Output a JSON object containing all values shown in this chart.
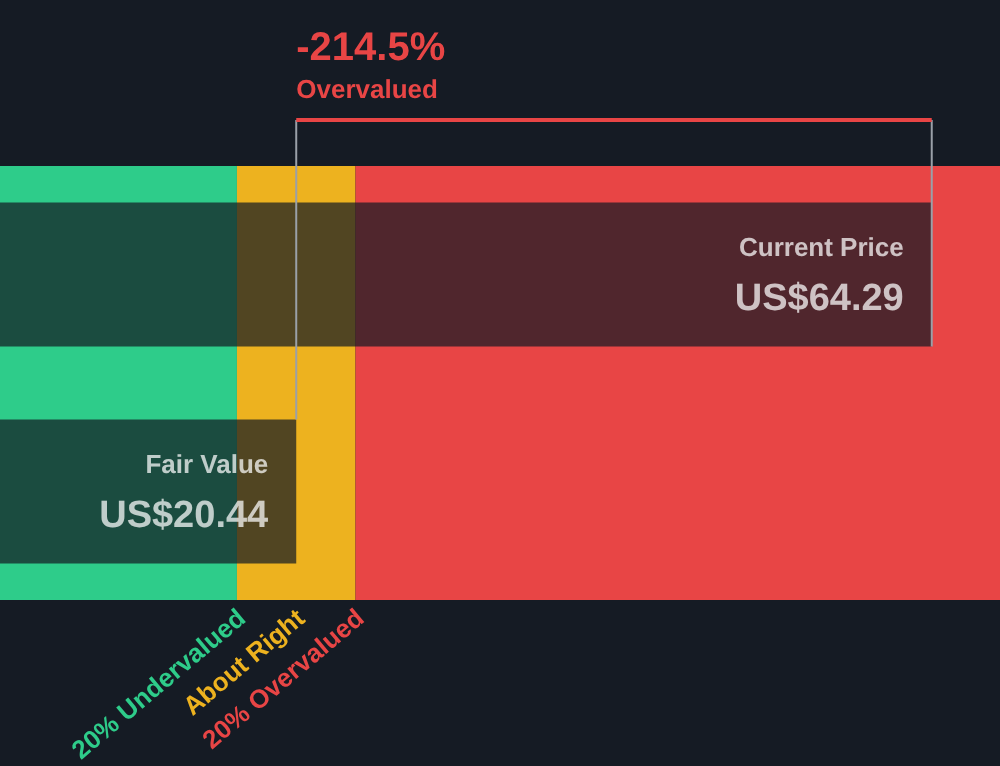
{
  "chart_data": {
    "type": "bar",
    "orientation": "horizontal",
    "categories": [
      "Current Price",
      "Fair Value"
    ],
    "values": [
      64.29,
      20.44
    ],
    "value_labels": [
      "US$64.29",
      "US$20.44"
    ],
    "colors": [
      "#151b24",
      "#151b24"
    ],
    "xlim": [
      0,
      69
    ],
    "tick_labels": false,
    "bands": [
      {
        "axis": "x",
        "from": 0,
        "to": 16.35,
        "label": "20% Undervalued",
        "color": "#2ecc8a"
      },
      {
        "axis": "x",
        "from": 16.35,
        "to": 24.53,
        "label": "About Right",
        "color": "#edb21f"
      },
      {
        "axis": "x",
        "from": 24.53,
        "to": 69,
        "label": "20% Overvalued",
        "color": "#e84545"
      }
    ],
    "annotations": [
      "-214.5%",
      "Overvalued"
    ]
  }
}
